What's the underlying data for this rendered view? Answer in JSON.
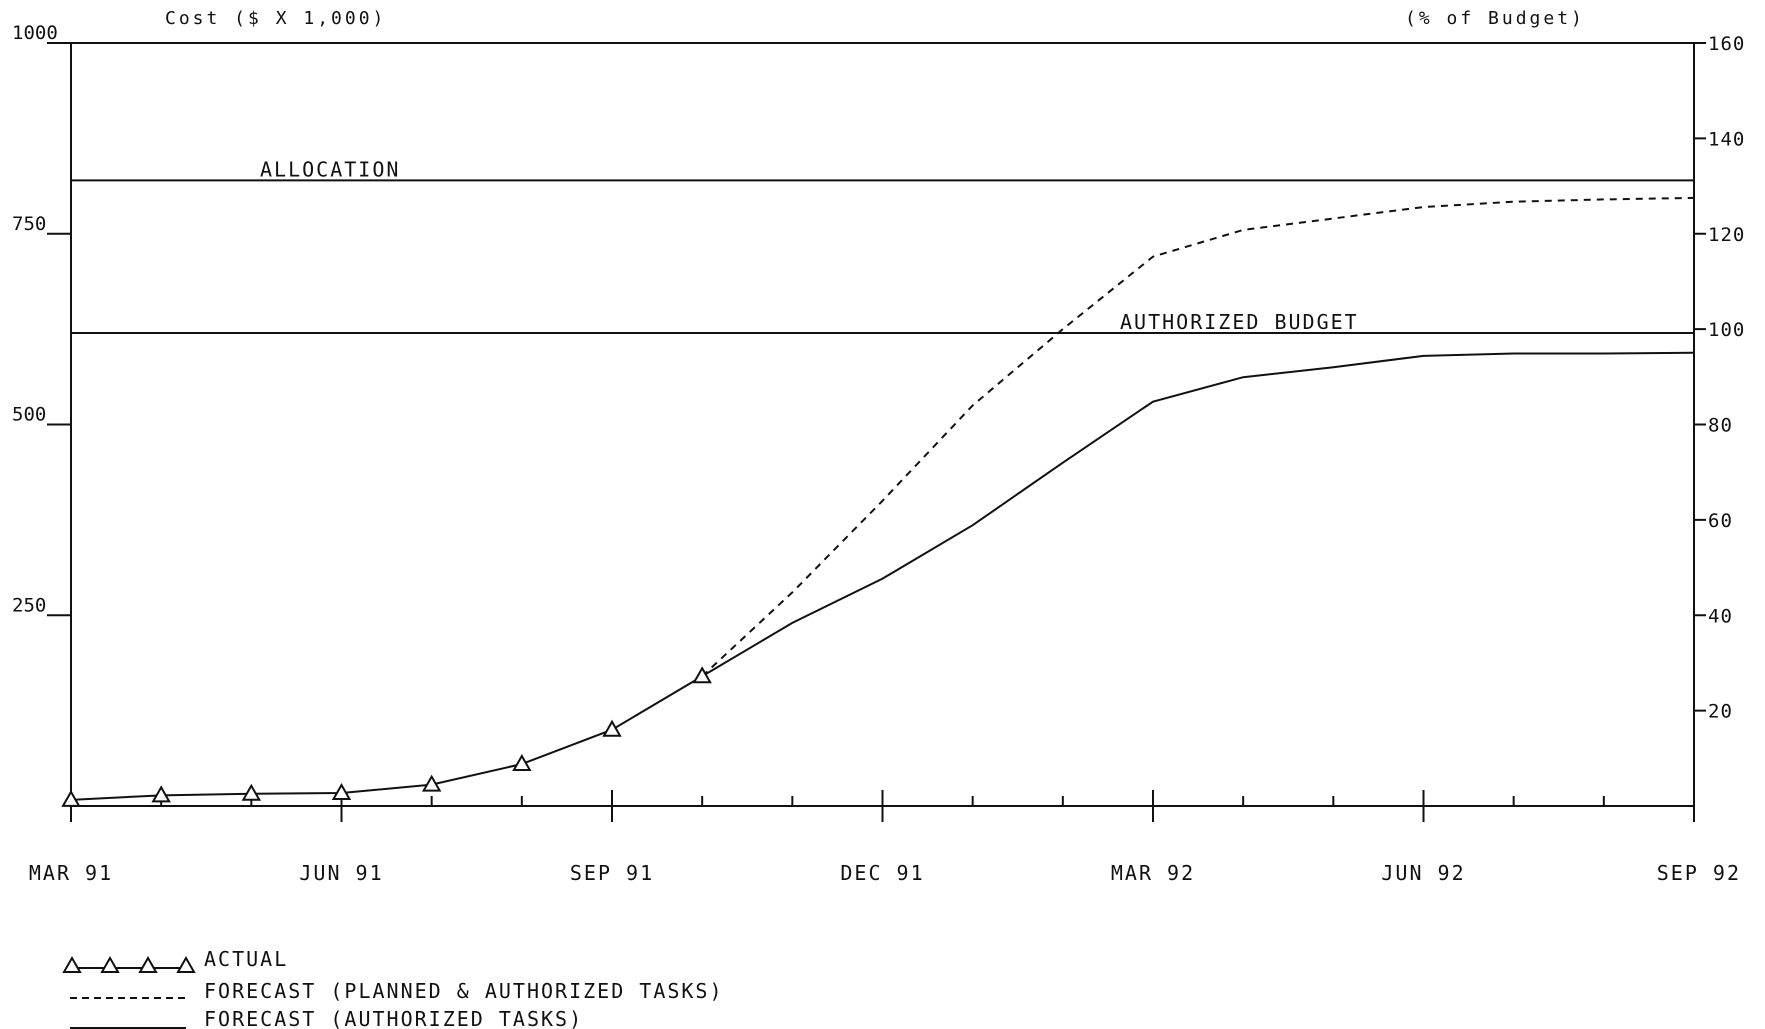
{
  "chart_data": {
    "type": "line",
    "title": "",
    "y_left_label": "Cost ($ X 1,000)",
    "y_right_label": "(% of Budget)",
    "y_left_ticks": [
      "1000",
      "750",
      "500",
      "250"
    ],
    "y_left_tick_values": [
      1000,
      750,
      500,
      250
    ],
    "y_right_ticks": [
      "160",
      "140",
      "120",
      "100",
      "80",
      "60",
      "40",
      "20"
    ],
    "y_right_tick_values": [
      160,
      140,
      120,
      100,
      80,
      60,
      40,
      20
    ],
    "ylim": [
      0,
      1000
    ],
    "y_right_lim": [
      0,
      160
    ],
    "x_tick_labels": [
      "MAR 91",
      "JUN 91",
      "SEP 91",
      "DEC 91",
      "MAR 92",
      "JUN 92",
      "SEP 92"
    ],
    "x_months": [
      "MAR 91",
      "APR 91",
      "MAY 91",
      "JUN 91",
      "JUL 91",
      "AUG 91",
      "SEP 91",
      "OCT 91",
      "NOV 91",
      "DEC 91",
      "JAN 92",
      "FEB 92",
      "MAR 92",
      "APR 92",
      "MAY 92",
      "JUN 92",
      "JUL 92",
      "AUG 92",
      "SEP 92"
    ],
    "reference_lines": [
      {
        "name": "ALLOCATION",
        "value": 820
      },
      {
        "name": "AUTHORIZED BUDGET",
        "value": 620
      }
    ],
    "series": [
      {
        "name": "ACTUAL",
        "style": "line-triangle-markers",
        "x": [
          "MAR 91",
          "APR 91",
          "MAY 91",
          "JUN 91",
          "JUL 91",
          "AUG 91",
          "SEP 91",
          "OCT 91"
        ],
        "values": [
          8,
          14,
          16,
          17,
          28,
          55,
          100,
          170
        ]
      },
      {
        "name": "FORECAST (PLANNED & AUTHORIZED TASKS)",
        "style": "dashed",
        "x": [
          "OCT 91",
          "NOV 91",
          "DEC 91",
          "JAN 92",
          "FEB 92",
          "MAR 92",
          "APR 92",
          "MAY 92",
          "JUN 92",
          "JUL 92",
          "AUG 92",
          "SEP 92"
        ],
        "values": [
          170,
          280,
          400,
          525,
          625,
          720,
          755,
          770,
          785,
          792,
          795,
          797
        ]
      },
      {
        "name": "FORECAST (AUTHORIZED TASKS)",
        "style": "solid",
        "x": [
          "OCT 91",
          "NOV 91",
          "DEC 91",
          "JAN 92",
          "FEB 92",
          "MAR 92",
          "APR 92",
          "MAY 92",
          "JUN 92",
          "JUL 92",
          "AUG 92",
          "SEP 92"
        ],
        "values": [
          170,
          240,
          298,
          368,
          450,
          530,
          562,
          575,
          590,
          593,
          593,
          594
        ]
      }
    ],
    "grid": false,
    "legend_position": "bottom-left"
  }
}
